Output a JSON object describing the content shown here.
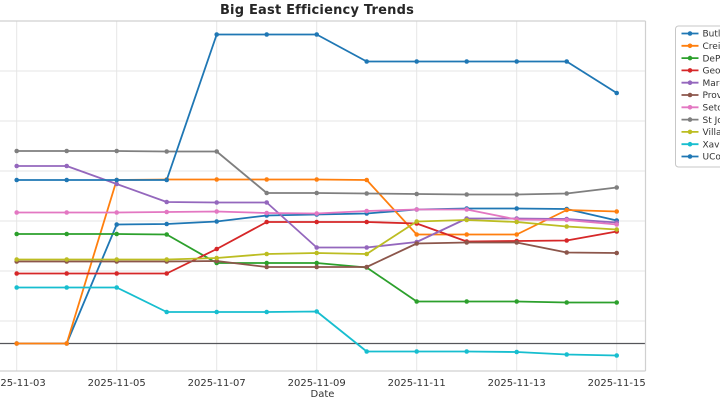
{
  "title": "Big East Efficiency Trends",
  "chart_data": {
    "type": "line",
    "title": "Big East Efficiency Trends",
    "xlabel": "Date",
    "ylabel": "",
    "x": [
      "2025-11-03",
      "2025-11-04",
      "2025-11-05",
      "2025-11-06",
      "2025-11-07",
      "2025-11-08",
      "2025-11-09",
      "2025-11-10",
      "2025-11-11",
      "2025-11-12",
      "2025-11-13",
      "2025-11-14",
      "2025-11-15"
    ],
    "x_tick_labels": [
      "2025-11-03",
      "2025-11-05",
      "2025-11-07",
      "2025-11-09",
      "2025-11-11",
      "2025-11-13",
      "2025-11-15"
    ],
    "ylim": [
      -2.75,
      32.25
    ],
    "y_gridlines": [
      2.25,
      7.25,
      12.25,
      17.25,
      22.25,
      27.25
    ],
    "reference_line_y": 0,
    "grid": true,
    "y_axis_labels_visible": false,
    "legend_position": "upper-right-outside-cropped",
    "series": [
      {
        "name": "Butler",
        "color": "#1f77b4",
        "values": [
          0,
          0,
          11.9,
          11.95,
          12.2,
          12.8,
          12.9,
          13.0,
          13.4,
          13.5,
          13.5,
          13.45,
          12.3
        ]
      },
      {
        "name": "Creighton",
        "color": "#ff7f0e",
        "values": [
          0,
          0,
          16.35,
          16.4,
          16.4,
          16.4,
          16.4,
          16.35,
          10.9,
          10.9,
          10.9,
          13.35,
          13.2
        ]
      },
      {
        "name": "DePaul",
        "color": "#2ca02c",
        "values": [
          10.95,
          10.95,
          10.95,
          10.9,
          8.05,
          8.05,
          8.05,
          7.6,
          4.2,
          4.2,
          4.2,
          4.1,
          4.1
        ]
      },
      {
        "name": "Georgetown",
        "color": "#d62728",
        "values": [
          7.0,
          7.0,
          7.0,
          7.0,
          9.45,
          12.15,
          12.15,
          12.15,
          12.0,
          10.2,
          10.25,
          10.3,
          11.2
        ]
      },
      {
        "name": "Marquette",
        "color": "#9467bd",
        "values": [
          17.75,
          17.75,
          15.95,
          14.15,
          14.1,
          14.1,
          9.6,
          9.6,
          10.15,
          12.5,
          12.5,
          12.45,
          12.1
        ]
      },
      {
        "name": "Providence",
        "color": "#8c564b",
        "values": [
          8.2,
          8.2,
          8.2,
          8.2,
          8.25,
          7.65,
          7.65,
          7.65,
          10.0,
          10.1,
          10.1,
          9.1,
          9.05
        ]
      },
      {
        "name": "Seton Hall",
        "color": "#e377c2",
        "values": [
          13.1,
          13.1,
          13.1,
          13.15,
          13.2,
          13.05,
          13.0,
          13.25,
          13.4,
          13.4,
          12.4,
          12.35,
          11.9
        ]
      },
      {
        "name": "St John's",
        "color": "#7f7f7f",
        "values": [
          19.25,
          19.25,
          19.25,
          19.2,
          19.2,
          15.05,
          15.05,
          15.0,
          14.95,
          14.9,
          14.9,
          15.0,
          15.6
        ]
      },
      {
        "name": "Villanova",
        "color": "#bcbd22",
        "values": [
          8.4,
          8.4,
          8.4,
          8.4,
          8.55,
          8.95,
          9.05,
          8.95,
          12.2,
          12.35,
          12.15,
          11.7,
          11.4
        ]
      },
      {
        "name": "Xavier",
        "color": "#17becf",
        "values": [
          5.6,
          5.6,
          5.6,
          3.15,
          3.15,
          3.15,
          3.2,
          -0.8,
          -0.8,
          -0.8,
          -0.85,
          -1.1,
          -1.2
        ]
      },
      {
        "name": "UConn",
        "color": "#1f77b4",
        "values": [
          16.35,
          16.35,
          16.35,
          16.35,
          30.9,
          30.9,
          30.9,
          28.2,
          28.2,
          28.2,
          28.2,
          28.2,
          25.05
        ]
      }
    ]
  },
  "style": {
    "grid_color": "#e6e6e6",
    "spine_color": "#d0d0d0",
    "reference_line_color": "#55565a",
    "tick_label_color": "#333333",
    "title_color": "#262626",
    "legend_border_color": "#c7c7c7",
    "legend_bg": "#ffffff"
  }
}
